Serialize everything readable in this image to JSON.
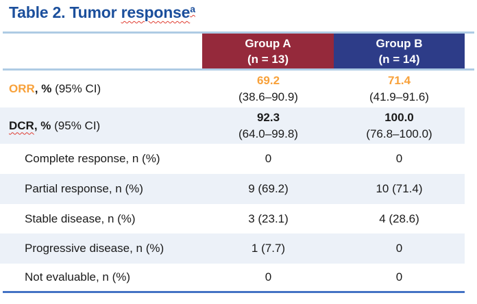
{
  "title": {
    "prefix": "Table 2. Tumor ",
    "highlight": "response",
    "superscript": "a"
  },
  "colors": {
    "title-blue": "#1B4F9C",
    "group-a": "#95293B",
    "group-b": "#2D3C88",
    "row-alt": "#ECF1F8",
    "accent-orange": "#F8A13A",
    "light-rule": "#AECBE4",
    "bottom-rule": "#4472C4",
    "squiggle-red": "#E03C31",
    "text": "#1A1A1A"
  },
  "table": {
    "header": {
      "group_a": {
        "line1": "Group A",
        "line2": "(n = 13)"
      },
      "group_b": {
        "line1": "Group B",
        "line2": "(n = 14)"
      }
    },
    "rows": [
      {
        "label_prefix": "ORR",
        "label_bold": ", %",
        "label_rest": " (95% CI)",
        "a_value": "69.2",
        "a_ci": "(38.6–90.9)",
        "b_value": "71.4",
        "b_ci": "(41.9–91.6)"
      },
      {
        "label_prefix": "DCR",
        "label_bold": ", %",
        "label_rest": " (95% CI)",
        "a_value": "92.3",
        "a_ci": "(64.0–99.8)",
        "b_value": "100.0",
        "b_ci": "(76.8–100.0)"
      },
      {
        "label": "Complete response, n (%)",
        "a_value": "0",
        "b_value": "0"
      },
      {
        "label": "Partial response, n (%)",
        "a_value": "9 (69.2)",
        "b_value": "10 (71.4)"
      },
      {
        "label": "Stable disease, n (%)",
        "a_value": "3 (23.1)",
        "b_value": "4 (28.6)"
      },
      {
        "label": "Progressive disease, n (%)",
        "a_value": "1 (7.7)",
        "b_value": "0"
      },
      {
        "label": "Not evaluable, n (%)",
        "a_value": "0",
        "b_value": "0"
      }
    ]
  }
}
